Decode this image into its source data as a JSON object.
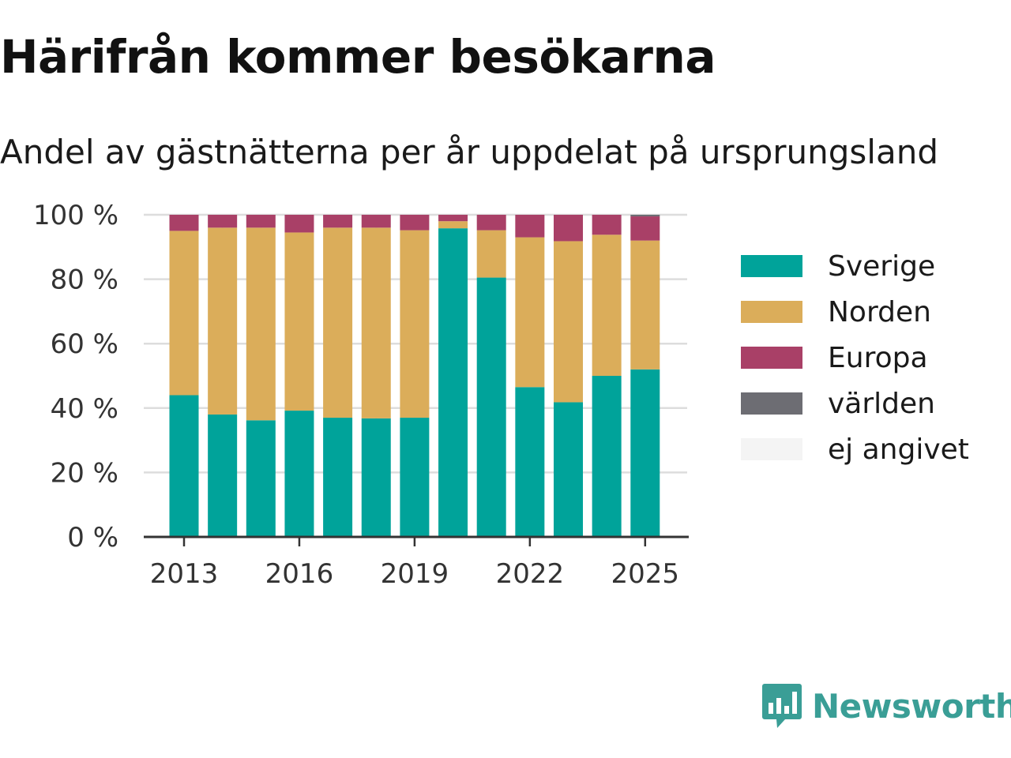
{
  "title": "Härifrån kommer besökarna",
  "subtitle": "Andel av gästnätterna per år uppdelat på ursprungsland",
  "brand": "Newsworthy",
  "chart_data": {
    "type": "bar",
    "stacked": true,
    "categories": [
      2013,
      2014,
      2015,
      2016,
      2017,
      2018,
      2019,
      2020,
      2021,
      2022,
      2023,
      2024,
      2025
    ],
    "x_ticks": [
      "2013",
      "2016",
      "2019",
      "2022",
      "2025"
    ],
    "y_ticks": [
      "0 %",
      "20 %",
      "40 %",
      "60 %",
      "80 %",
      "100 %"
    ],
    "ylim": [
      0,
      100
    ],
    "grid": true,
    "legend_position": "right",
    "series": [
      {
        "name": "Sverige",
        "color": "#00a39a",
        "values": [
          44,
          38,
          36.2,
          39.2,
          37,
          36.8,
          37,
          95.8,
          80.5,
          46.5,
          41.8,
          50,
          52
        ]
      },
      {
        "name": "Norden",
        "color": "#dbad5a",
        "values": [
          51,
          58,
          59.8,
          55.3,
          59,
          59.2,
          58.2,
          2.2,
          14.7,
          46.5,
          50,
          43.8,
          40
        ]
      },
      {
        "name": "Europa",
        "color": "#a94067",
        "values": [
          5,
          4,
          4,
          5.5,
          4,
          4,
          4.8,
          2,
          4.8,
          7,
          8.2,
          6.2,
          7.5
        ]
      },
      {
        "name": "världen",
        "color": "#6d6d73",
        "values": [
          0,
          0,
          0,
          0,
          0,
          0,
          0,
          0,
          0,
          0,
          0,
          0,
          0.5
        ]
      },
      {
        "name": "ej angivet",
        "color": "#f4f4f4",
        "values": [
          0,
          0,
          0,
          0,
          0,
          0,
          0,
          0,
          0,
          0,
          0,
          0,
          0
        ]
      }
    ]
  }
}
